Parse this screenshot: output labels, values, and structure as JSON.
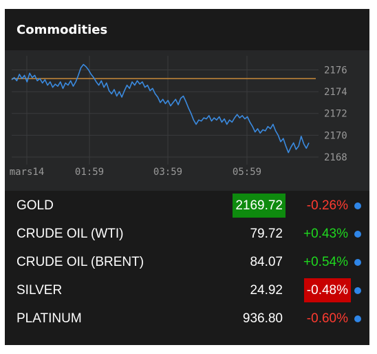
{
  "widget": {
    "title": "Commodities"
  },
  "chart_data": {
    "type": "line",
    "x_labels": [
      "mars14",
      "01:59",
      "03:59",
      "05:59"
    ],
    "y_ticks": [
      2176,
      2174,
      2172,
      2170,
      2168
    ],
    "ylim": [
      2167.3,
      2177.3
    ],
    "reference_line": 2175.2,
    "series": [
      {
        "values": [
          2175.1,
          2175.3,
          2175.0,
          2175.6,
          2175.2,
          2175.5,
          2174.9,
          2175.7,
          2175.3,
          2175.5,
          2175.0,
          2175.2,
          2174.8,
          2175.1,
          2174.6,
          2174.9,
          2174.4,
          2174.7,
          2174.5,
          2174.9,
          2174.3,
          2174.8,
          2174.6,
          2175.0,
          2174.5,
          2174.9,
          2175.5,
          2176.2,
          2176.5,
          2176.3,
          2176.0,
          2175.6,
          2175.3,
          2174.9,
          2174.6,
          2175.0,
          2174.4,
          2174.8,
          2174.1,
          2173.8,
          2174.2,
          2173.6,
          2174.0,
          2173.5,
          2174.1,
          2174.6,
          2174.3,
          2174.9,
          2174.6,
          2175.0,
          2174.7,
          2174.9,
          2174.4,
          2174.6,
          2174.1,
          2174.3,
          2173.8,
          2173.5,
          2173.0,
          2173.3,
          2172.9,
          2173.2,
          2172.7,
          2173.0,
          2173.3,
          2172.8,
          2173.4,
          2173.6,
          2173.1,
          2172.5,
          2172.0,
          2171.4,
          2171.0,
          2171.4,
          2171.3,
          2171.6,
          2171.5,
          2171.8,
          2171.3,
          2171.6,
          2171.4,
          2171.7,
          2171.2,
          2171.5,
          2171.0,
          2171.4,
          2171.2,
          2171.6,
          2171.9,
          2171.6,
          2171.8,
          2171.5,
          2171.7,
          2171.2,
          2170.8,
          2170.3,
          2170.6,
          2170.2,
          2170.5,
          2170.4,
          2170.8,
          2170.6,
          2171.0,
          2170.4,
          2170.0,
          2169.4,
          2169.7,
          2169.0,
          2168.4,
          2168.9,
          2169.3,
          2168.7,
          2169.0,
          2169.9,
          2169.2,
          2168.8,
          2169.3
        ]
      }
    ]
  },
  "rows": [
    {
      "name": "GOLD",
      "price": "2169.72",
      "change": "-0.26%",
      "dir": "neg",
      "price_hl": "green",
      "change_hl": ""
    },
    {
      "name": "CRUDE OIL (WTI)",
      "price": "79.72",
      "change": "+0.43%",
      "dir": "pos",
      "price_hl": "",
      "change_hl": ""
    },
    {
      "name": "CRUDE OIL (BRENT)",
      "price": "84.07",
      "change": "+0.54%",
      "dir": "pos",
      "price_hl": "",
      "change_hl": ""
    },
    {
      "name": "SILVER",
      "price": "24.92",
      "change": "-0.48%",
      "dir": "neg",
      "price_hl": "",
      "change_hl": "red"
    },
    {
      "name": "PLATINUM",
      "price": "936.80",
      "change": "-0.60%",
      "dir": "neg",
      "price_hl": "",
      "change_hl": ""
    }
  ],
  "colors": {
    "line": "#3b8be0",
    "reference": "#c88a3a",
    "grid": "#3a3b3d",
    "positive": "#1fd81f",
    "negative": "#ff3b30",
    "highlight_green": "#0e8a0e",
    "highlight_red": "#c80000",
    "dot": "#2f86e8"
  }
}
